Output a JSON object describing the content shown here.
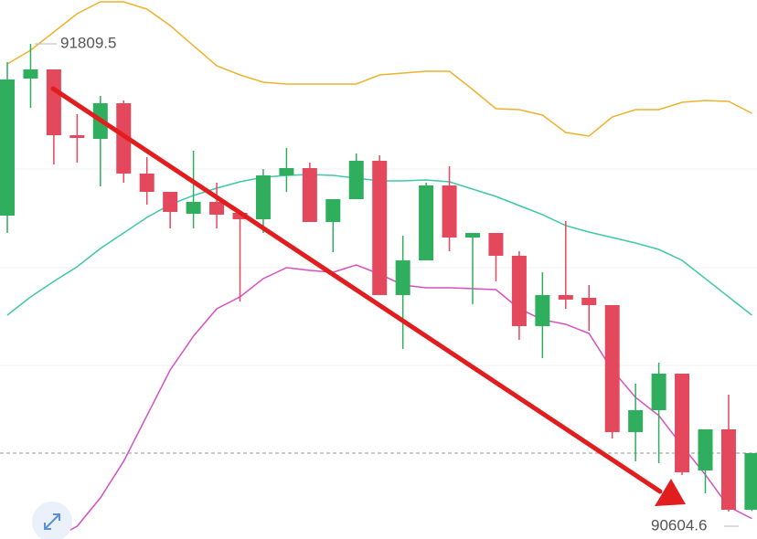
{
  "chart_data": {
    "type": "candlestick",
    "ylim": [
      90534.0,
      91922.5
    ],
    "up_color": "#2fae5e",
    "down_color": "#e4485c",
    "candles": [
      {
        "open": 91367.1,
        "high": 91762.5,
        "low": 91322.4,
        "close": 91717.8
      },
      {
        "open": 91720.1,
        "high": 91809.5,
        "low": 91644.8,
        "close": 91743.6
      },
      {
        "open": 91743.6,
        "high": 91743.6,
        "low": 91498.9,
        "close": 91574.2
      },
      {
        "open": 91574.2,
        "high": 91628.3,
        "low": 91503.6,
        "close": 91567.1
      },
      {
        "open": 91564.8,
        "high": 91675.4,
        "low": 91442.4,
        "close": 91656.6
      },
      {
        "open": 91656.6,
        "high": 91663.6,
        "low": 91451.8,
        "close": 91475.4
      },
      {
        "open": 91475.4,
        "high": 91517.7,
        "low": 91395.4,
        "close": 91428.3
      },
      {
        "open": 91428.3,
        "high": 91428.3,
        "low": 91334.2,
        "close": 91376.6
      },
      {
        "open": 91371.8,
        "high": 91534.2,
        "low": 91334.2,
        "close": 91402.4
      },
      {
        "open": 91402.4,
        "high": 91451.8,
        "low": 91334.2,
        "close": 91369.5
      },
      {
        "open": 91374.2,
        "high": 91374.2,
        "low": 91145.9,
        "close": 91357.7
      },
      {
        "open": 91357.7,
        "high": 91487.1,
        "low": 91322.4,
        "close": 91470.7
      },
      {
        "open": 91470.7,
        "high": 91541.3,
        "low": 91428.3,
        "close": 91489.5
      },
      {
        "open": 91489.5,
        "high": 91503.6,
        "low": 91350.6,
        "close": 91350.6
      },
      {
        "open": 91350.6,
        "high": 91409.5,
        "low": 91273.0,
        "close": 91409.5
      },
      {
        "open": 91409.5,
        "high": 91527.2,
        "low": 91409.5,
        "close": 91508.3
      },
      {
        "open": 91508.3,
        "high": 91522.4,
        "low": 91162.4,
        "close": 91162.4
      },
      {
        "open": 91162.4,
        "high": 91315.3,
        "low": 91023.5,
        "close": 91251.8
      },
      {
        "open": 91251.8,
        "high": 91451.8,
        "low": 91251.8,
        "close": 91444.8
      },
      {
        "open": 91444.8,
        "high": 91494.2,
        "low": 91275.4,
        "close": 91310.6
      },
      {
        "open": 91310.6,
        "high": 91322.4,
        "low": 91138.9,
        "close": 91322.4
      },
      {
        "open": 91322.4,
        "high": 91322.4,
        "low": 91197.7,
        "close": 91263.6
      },
      {
        "open": 91263.6,
        "high": 91275.4,
        "low": 91047.1,
        "close": 91082.4
      },
      {
        "open": 91082.4,
        "high": 91221.2,
        "low": 91000.0,
        "close": 91162.4
      },
      {
        "open": 91162.4,
        "high": 91353.0,
        "low": 91127.1,
        "close": 91150.7
      },
      {
        "open": 91155.3,
        "high": 91188.3,
        "low": 91070.6,
        "close": 91136.5
      },
      {
        "open": 91136.5,
        "high": 91136.5,
        "low": 90792.9,
        "close": 90809.4
      },
      {
        "open": 90809.4,
        "high": 90934.1,
        "low": 90734.1,
        "close": 90865.8
      },
      {
        "open": 90865.8,
        "high": 90988.2,
        "low": 90729.4,
        "close": 90960.0
      },
      {
        "open": 90960.0,
        "high": 90960.0,
        "low": 90698.8,
        "close": 90705.9
      },
      {
        "open": 90710.6,
        "high": 90816.4,
        "low": 90651.7,
        "close": 90816.4
      },
      {
        "open": 90816.4,
        "high": 90905.9,
        "low": 90604.6,
        "close": 90609.4
      },
      {
        "open": 90609.4,
        "high": 90755.3,
        "low": 90606.0,
        "close": 90755.3
      }
    ],
    "series": [
      {
        "color": "#eeb22c",
        "values": [
          91757.8,
          91793.1,
          91840.1,
          91887.2,
          91917.8,
          91917.8,
          91899.0,
          91856.6,
          91804.8,
          91753.1,
          91729.5,
          91710.7,
          91706.0,
          91706.0,
          91706.0,
          91706.0,
          91729.5,
          91734.2,
          91738.9,
          91738.9,
          91691.9,
          91642.5,
          91640.1,
          91626.0,
          91581.3,
          91571.9,
          91621.3,
          91640.1,
          91640.1,
          91658.9,
          91663.6,
          91661.3,
          91630.7
        ]
      },
      {
        "color": "#3ec9a7",
        "values": [
          91110.6,
          91157.7,
          91197.7,
          91235.3,
          91282.4,
          91322.4,
          91362.4,
          91395.4,
          91418.9,
          91437.7,
          91454.2,
          91465.9,
          91470.7,
          91473.0,
          91470.7,
          91463.6,
          91456.6,
          91456.6,
          91458.9,
          91454.2,
          91435.4,
          91416.5,
          91393.0,
          91369.5,
          91341.3,
          91324.8,
          91310.6,
          91296.5,
          91280.0,
          91251.8,
          91204.8,
          91157.7,
          91110.6
        ]
      },
      {
        "color": "#d94fc0",
        "values": [
          null,
          null,
          90534.0,
          90567.0,
          90639.9,
          90734.1,
          90851.8,
          90969.4,
          91056.5,
          91127.1,
          91157.7,
          91204.8,
          91233.0,
          91225.9,
          91221.2,
          91240.0,
          91216.5,
          91188.3,
          91181.2,
          91181.2,
          91178.9,
          91176.5,
          91127.1,
          91098.9,
          91087.1,
          91063.5,
          90969.4,
          90898.8,
          90851.8,
          90774.2,
          90699.4,
          90617.2,
          90586.7
        ]
      }
    ]
  }
}
